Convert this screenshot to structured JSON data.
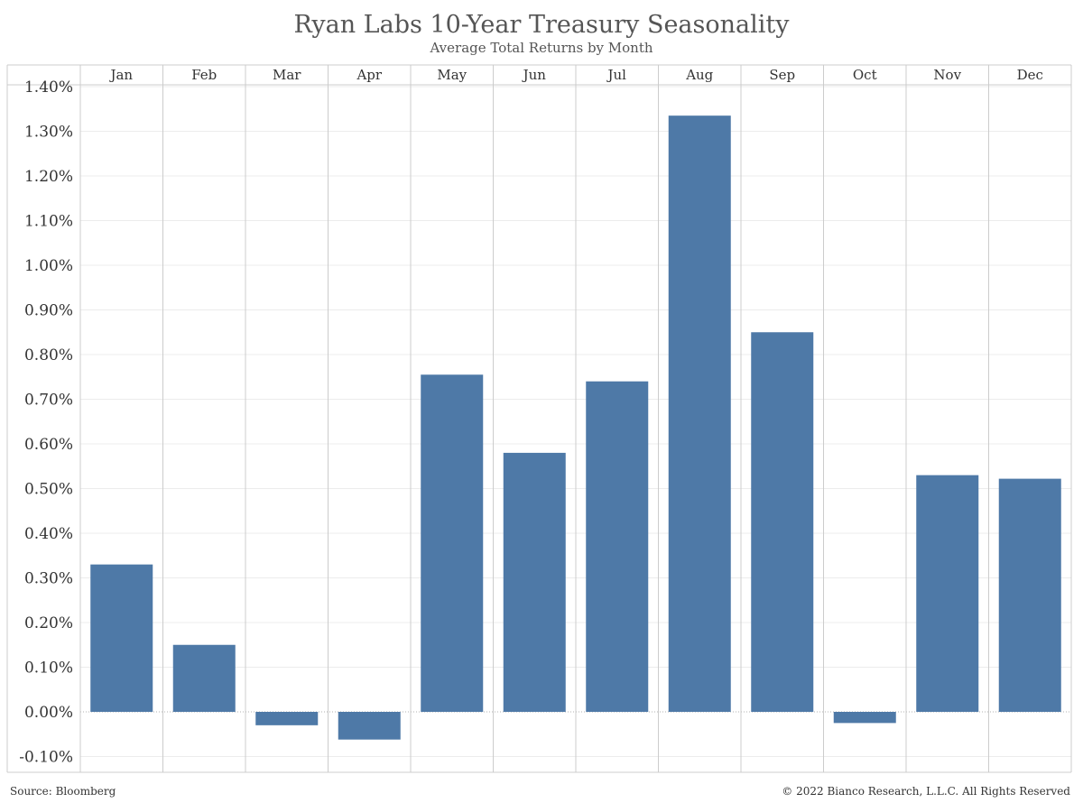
{
  "chart_data": {
    "type": "bar",
    "title": "Ryan Labs 10-Year Treasury Seasonality",
    "subtitle": "Average Total Returns by Month",
    "categories": [
      "Jan",
      "Feb",
      "Mar",
      "Apr",
      "May",
      "Jun",
      "Jul",
      "Aug",
      "Sep",
      "Oct",
      "Nov",
      "Dec"
    ],
    "values": [
      0.33,
      0.15,
      -0.03,
      -0.062,
      0.755,
      0.58,
      0.74,
      1.335,
      0.85,
      -0.025,
      0.53,
      0.522
    ],
    "value_unit": "%",
    "ylim": [
      -0.12,
      1.42
    ],
    "yticks": [
      "1.40%",
      "1.30%",
      "1.20%",
      "1.10%",
      "1.00%",
      "0.90%",
      "0.80%",
      "0.70%",
      "0.60%",
      "0.50%",
      "0.40%",
      "0.30%",
      "0.20%",
      "0.10%",
      "0.00%",
      "-0.10%"
    ],
    "ytick_values": [
      1.4,
      1.3,
      1.2,
      1.1,
      1.0,
      0.9,
      0.8,
      0.7,
      0.6,
      0.5,
      0.4,
      0.3,
      0.2,
      0.1,
      0.0,
      -0.1
    ],
    "grid": true,
    "month_labels_position": "top",
    "colors": {
      "bar": "#4e79a7",
      "grid": "#ececec",
      "divider": "#cccccc",
      "text": "#333333"
    }
  },
  "footer": {
    "source": "Source: Bloomberg",
    "copyright": "© 2022 Bianco Research, L.L.C. All Rights Reserved"
  }
}
